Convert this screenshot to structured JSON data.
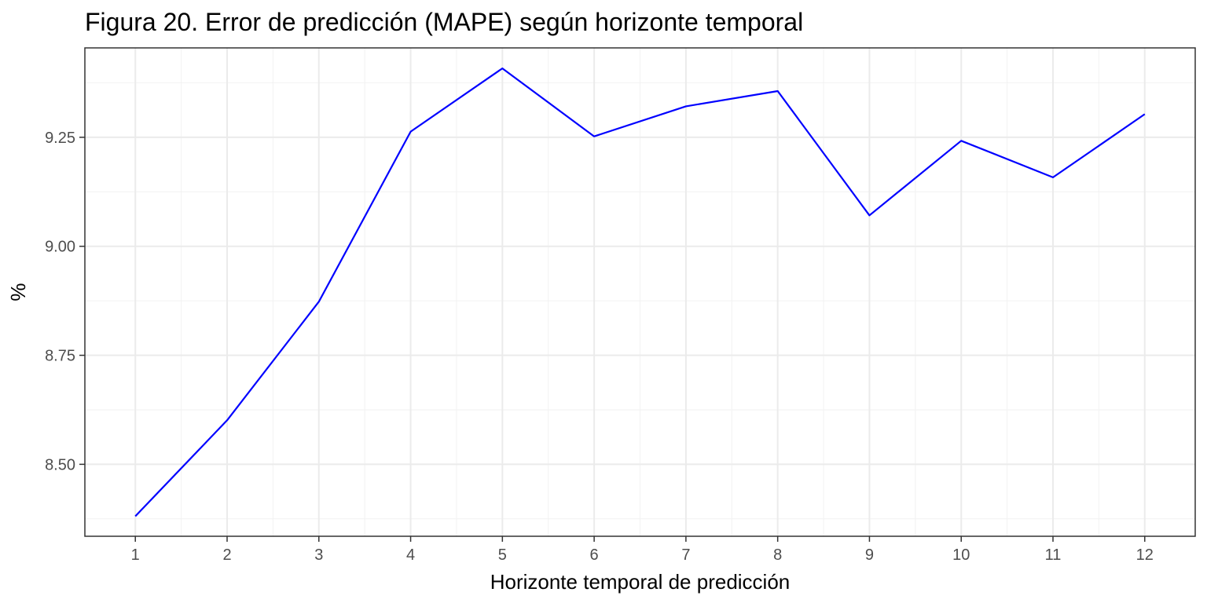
{
  "chart_data": {
    "type": "line",
    "title": "Figura 20. Error de predicción (MAPE) según horizonte temporal",
    "xlabel": "Horizonte temporal de predicción",
    "ylabel": "%",
    "x": [
      1,
      2,
      3,
      4,
      5,
      6,
      7,
      8,
      9,
      10,
      11,
      12
    ],
    "series": [
      {
        "values": [
          8.381,
          8.601,
          8.873,
          9.263,
          9.408,
          9.252,
          9.321,
          9.356,
          9.071,
          9.242,
          9.158,
          9.303
        ],
        "color": "#0000ff"
      }
    ],
    "xlim": [
      0.45,
      12.55
    ],
    "ylim": [
      8.335,
      9.455
    ],
    "x_ticks": [
      "1",
      "2",
      "3",
      "4",
      "5",
      "6",
      "7",
      "8",
      "9",
      "10",
      "11",
      "12"
    ],
    "y_ticks": [
      8.5,
      8.75,
      9.0,
      9.25
    ],
    "y_tick_labels": [
      "8.50",
      "8.75",
      "9.00",
      "9.25"
    ],
    "grid": true,
    "panel_border_color": "#333333",
    "grid_major_color": "#ebebeb",
    "grid_minor_color": "#f2f2f2"
  }
}
